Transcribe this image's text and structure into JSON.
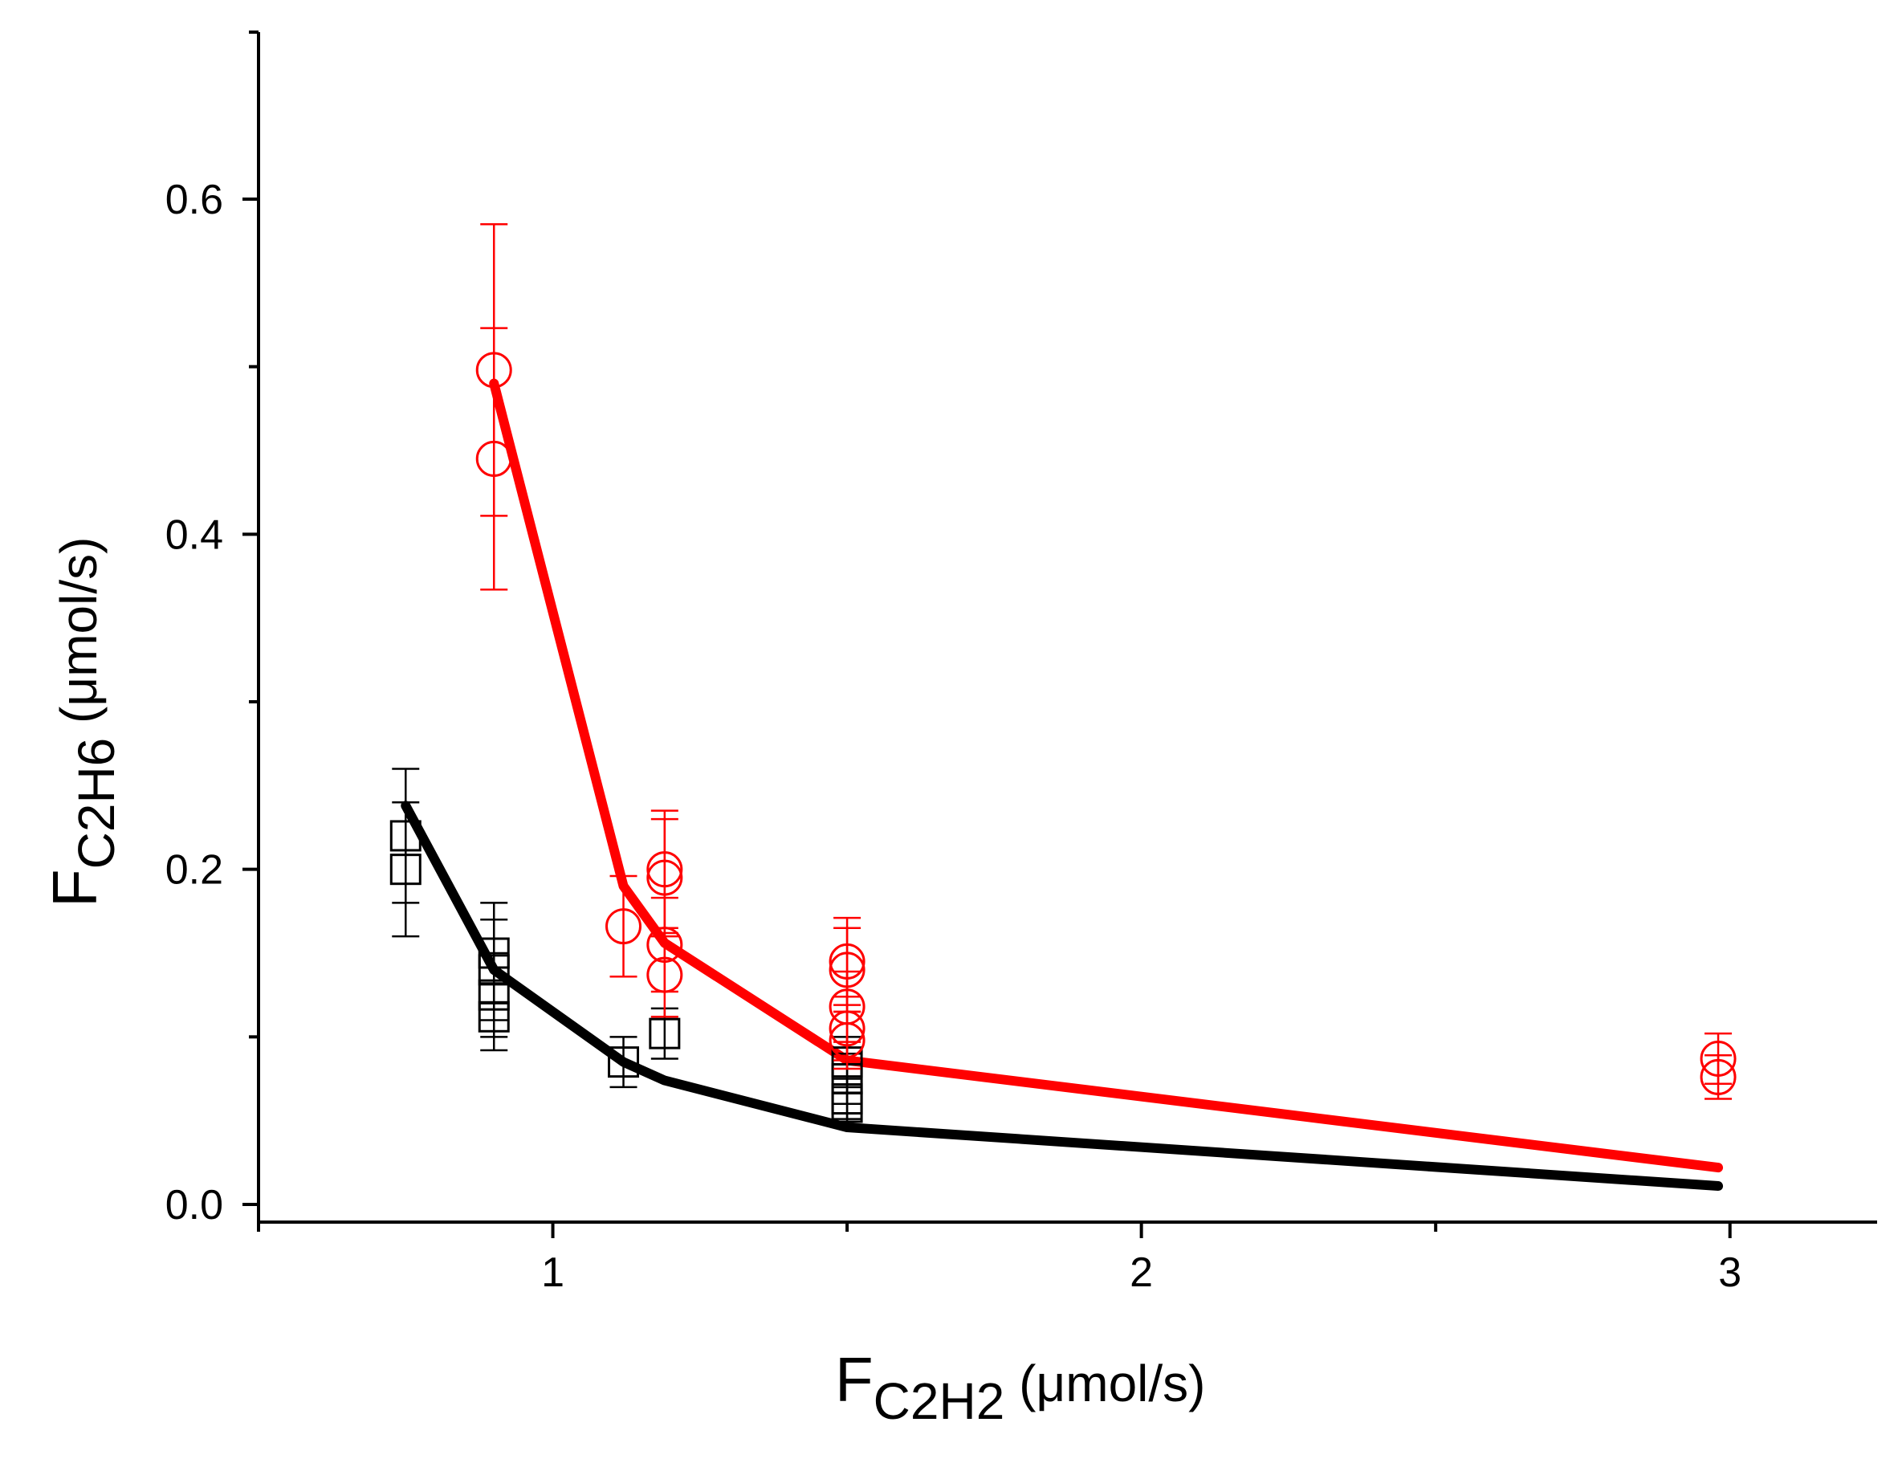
{
  "chart_data": {
    "type": "scatter",
    "title": "",
    "xlabel": {
      "main": "F",
      "sub": "C2H2",
      "unit": " (μmol/s)"
    },
    "ylabel": {
      "main": "F",
      "sub": "C2H6",
      "unit": " (μmol/s)"
    },
    "xlim": [
      0.5,
      3.25
    ],
    "ylim": [
      -0.01,
      0.7
    ],
    "x_ticks": [
      {
        "value": 1,
        "label": "1"
      },
      {
        "value": 2,
        "label": "2"
      },
      {
        "value": 3,
        "label": "3"
      }
    ],
    "x_minor_ticks": [
      0.5,
      1.5,
      2.5
    ],
    "y_ticks": [
      {
        "value": 0.0,
        "label": "0.0"
      },
      {
        "value": 0.2,
        "label": "0.2"
      },
      {
        "value": 0.4,
        "label": "0.4"
      },
      {
        "value": 0.6,
        "label": "0.6"
      }
    ],
    "y_minor_ticks": [
      0.1,
      0.3,
      0.5
    ],
    "series": [
      {
        "name": "black data",
        "marker": "square",
        "color": "#000000",
        "points": [
          {
            "x": 0.75,
            "y": 0.22,
            "err": 0.04
          },
          {
            "x": 0.75,
            "y": 0.2,
            "err": 0.04
          },
          {
            "x": 0.9,
            "y": 0.15,
            "err": 0.03
          },
          {
            "x": 0.9,
            "y": 0.14,
            "err": 0.03
          },
          {
            "x": 0.9,
            "y": 0.125,
            "err": 0.025
          },
          {
            "x": 0.9,
            "y": 0.112,
            "err": 0.02
          },
          {
            "x": 1.12,
            "y": 0.085,
            "err": 0.015
          },
          {
            "x": 1.19,
            "y": 0.102,
            "err": 0.015
          },
          {
            "x": 1.5,
            "y": 0.085,
            "err": 0.015
          },
          {
            "x": 1.5,
            "y": 0.075,
            "err": 0.015
          },
          {
            "x": 1.5,
            "y": 0.063,
            "err": 0.012
          },
          {
            "x": 1.5,
            "y": 0.058,
            "err": 0.012
          }
        ]
      },
      {
        "name": "red data",
        "marker": "circle",
        "color": "#ff0000",
        "points": [
          {
            "x": 0.9,
            "y": 0.498,
            "err": 0.087
          },
          {
            "x": 0.9,
            "y": 0.445,
            "err": 0.078
          },
          {
            "x": 1.12,
            "y": 0.166,
            "err": 0.03
          },
          {
            "x": 1.19,
            "y": 0.2,
            "err": 0.035
          },
          {
            "x": 1.19,
            "y": 0.195,
            "err": 0.035
          },
          {
            "x": 1.19,
            "y": 0.155,
            "err": 0.028
          },
          {
            "x": 1.19,
            "y": 0.137,
            "err": 0.025
          },
          {
            "x": 1.5,
            "y": 0.145,
            "err": 0.026
          },
          {
            "x": 1.5,
            "y": 0.14,
            "err": 0.025
          },
          {
            "x": 1.5,
            "y": 0.118,
            "err": 0.021
          },
          {
            "x": 1.5,
            "y": 0.105,
            "err": 0.019
          },
          {
            "x": 1.5,
            "y": 0.098,
            "err": 0.017
          },
          {
            "x": 2.98,
            "y": 0.087,
            "err": 0.015
          },
          {
            "x": 2.98,
            "y": 0.076,
            "err": 0.013
          }
        ]
      }
    ],
    "lines": [
      {
        "name": "black model",
        "color": "#000000",
        "x": [
          0.75,
          0.9,
          1.12,
          1.19,
          1.5,
          2.98
        ],
        "y": [
          0.238,
          0.14,
          0.085,
          0.074,
          0.046,
          0.011
        ]
      },
      {
        "name": "red model",
        "color": "#ff0000",
        "x": [
          0.9,
          1.12,
          1.19,
          1.5,
          2.98
        ],
        "y": [
          0.49,
          0.19,
          0.156,
          0.086,
          0.022
        ]
      }
    ]
  }
}
